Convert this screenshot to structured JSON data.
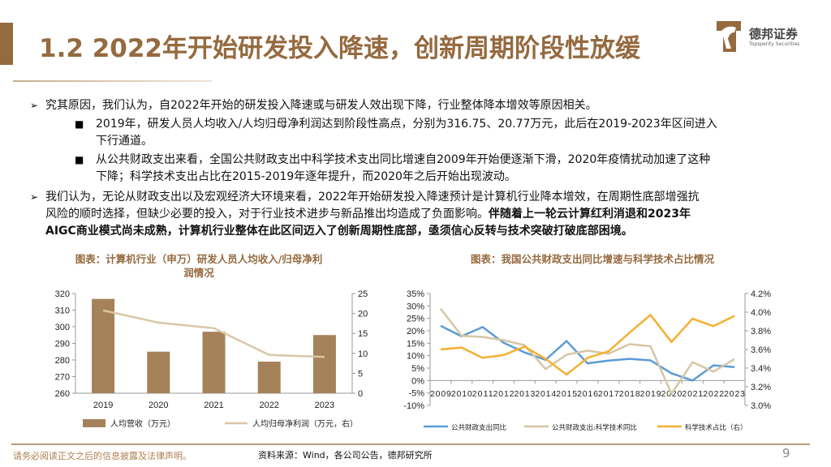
{
  "header": {
    "title": "1.2 2022年开始研发投入降速，创新周期阶段性放缓",
    "logo_cn": "德邦证券",
    "logo_en": "Topsperity Securities",
    "brand_color": "#956a3f"
  },
  "body": {
    "p1": "究其原因，我们认为，自2022年开始的研发投入降速或与研发人效出现下降，行业整体降本增效等原因相关。",
    "p1_sub1_line1": "2019年，研发人员人均收入/人均归母净利润达到阶段性高点，分别为316.75、20.77万元，此后在2019-2023年区间进入",
    "p1_sub1_line2": "下行通道。",
    "p1_sub2_line1": "从公共财政支出来看，全国公共财政支出中科学技术支出同比增速自2009年开始便逐渐下滑，2020年疫情扰动加速了这种",
    "p1_sub2_line2": "下降；科学技术支出占比在2015-2019年逐年提升，而2020年之后开始出现波动。",
    "p2_line1": "我们认为，无论从财政支出以及宏观经济大环境来看，2022年开始研发投入降速预计是计算机行业降本增效，在周期性底部增强抗",
    "p2_line2_normal": "风险的顺时选择，但缺少必要的投入，对于行业技术进步与新品推出均造成了负面影响。",
    "p2_line2_bold": "伴随着上一轮云计算红利消退和2023年",
    "p2_line3_bold": "AIGC商业模式尚未成熟，计算机行业整体在此区间迈入了创新周期性底部，亟须信心反转与技术突破打破底部困境。"
  },
  "chart_data": [
    {
      "type": "bar",
      "title": "图表：计算机行业（申万）研发人员人均收入/归母净利润情况",
      "title_line1": "图表：计算机行业（申万）研发人员人均收入/归母净利",
      "title_line2": "润情况",
      "categories": [
        "2019",
        "2020",
        "2021",
        "2022",
        "2023"
      ],
      "series": [
        {
          "name": "人均营收（万元）",
          "type": "bar",
          "axis": "left",
          "color": "#a5825a",
          "values": [
            316.75,
            285,
            297,
            279,
            295
          ]
        },
        {
          "name": "人均归母净利润（万元，右）",
          "type": "line",
          "axis": "right",
          "color": "#d9c7a4",
          "values": [
            20.77,
            17.7,
            16.3,
            9.6,
            9.1
          ]
        }
      ],
      "ylim_left": [
        260,
        320
      ],
      "yticks_left": [
        "260",
        "270",
        "280",
        "290",
        "300",
        "310",
        "320"
      ],
      "ylim_right": [
        0,
        25
      ],
      "yticks_right": [
        "0",
        "5",
        "10",
        "15",
        "20",
        "25"
      ],
      "grid": false,
      "legend": "bottom"
    },
    {
      "type": "line",
      "title": "图表：我国公共财政支出同比增速与科学技术占比情况",
      "categories": [
        "2009",
        "2010",
        "2011",
        "2012",
        "2013",
        "2014",
        "2015",
        "2016",
        "2017",
        "2018",
        "2019",
        "2020",
        "2021",
        "2022",
        "2023"
      ],
      "series": [
        {
          "name": "公共财政支出同比",
          "axis": "left",
          "color": "#5b9bd5",
          "values": [
            22.0,
            17.8,
            21.5,
            15.2,
            11.3,
            8.3,
            15.9,
            6.9,
            8.0,
            8.7,
            8.1,
            2.9,
            0.0,
            6.1,
            5.4
          ]
        },
        {
          "name": "公共财政支出:科学技术同比",
          "axis": "left",
          "color": "#d6c6a4",
          "values": [
            28.9,
            18.0,
            17.5,
            16.2,
            14.2,
            4.6,
            10.4,
            12.0,
            10.8,
            14.6,
            13.8,
            -5.3,
            7.4,
            3.6,
            8.6
          ]
        },
        {
          "name": "科学技术占比（右）",
          "axis": "right",
          "color": "#f5b02e",
          "values": [
            3.6,
            3.62,
            3.51,
            3.54,
            3.63,
            3.5,
            3.33,
            3.51,
            3.58,
            3.78,
            3.97,
            3.68,
            3.93,
            3.85,
            3.96
          ]
        }
      ],
      "ylim_left": [
        -10,
        35
      ],
      "yticks_left": [
        "-10%",
        "-5%",
        "0%",
        "5%",
        "10%",
        "15%",
        "20%",
        "25%",
        "30%",
        "35%"
      ],
      "ylim_right": [
        3.0,
        4.2
      ],
      "yticks_right": [
        "3.0%",
        "3.2%",
        "3.4%",
        "3.6%",
        "3.8%",
        "4.0%",
        "4.2%"
      ],
      "grid": false,
      "legend": "bottom"
    }
  ],
  "footer": {
    "disclaimer": "请务必阅读正文之后的信息披露及法律声明。",
    "source": "资料来源：Wind，各公司公告，德邦研究所",
    "page": "9"
  }
}
